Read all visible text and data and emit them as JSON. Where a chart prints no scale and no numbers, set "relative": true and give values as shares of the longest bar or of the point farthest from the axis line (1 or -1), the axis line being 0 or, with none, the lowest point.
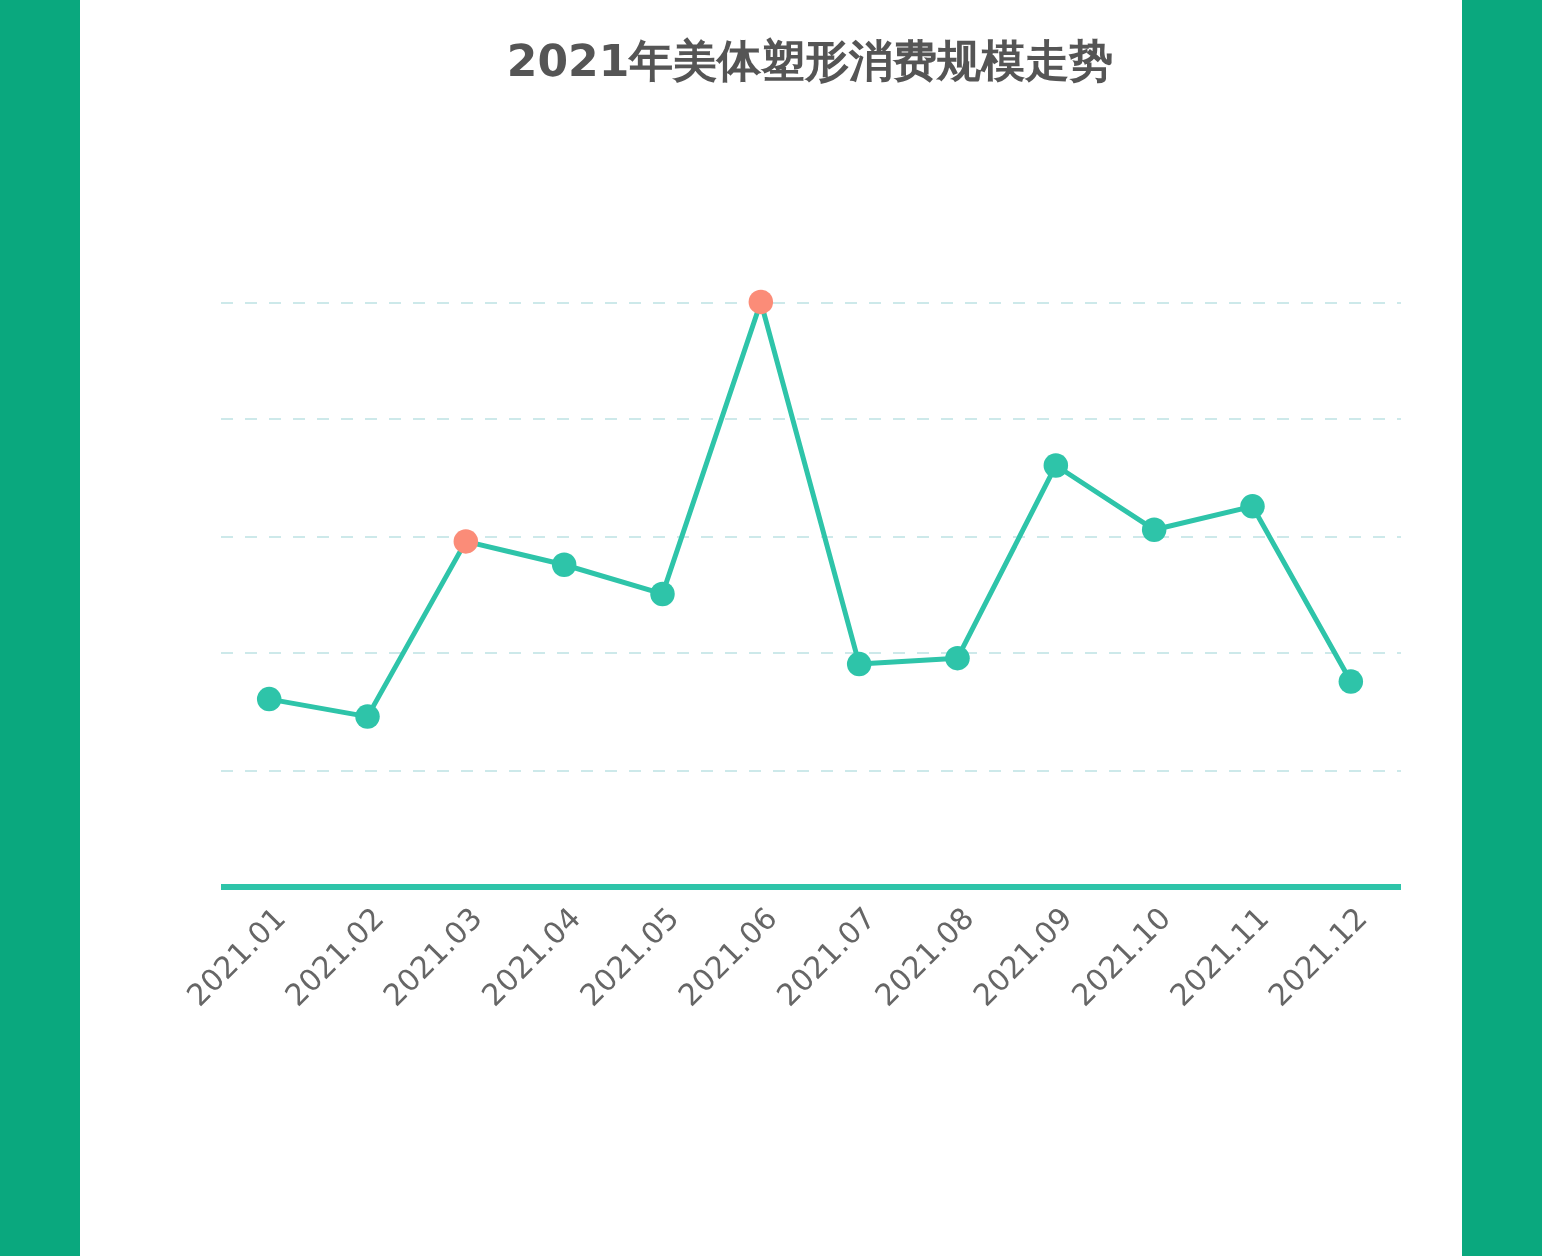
{
  "chart_data": {
    "type": "line",
    "title": "2021年美体塑形消费规模走势",
    "relative": true,
    "grid": "y",
    "marker": "circle",
    "line_style": "solid",
    "categories": [
      "2021.01",
      "2021.02",
      "2021.03",
      "2021.04",
      "2021.05",
      "2021.06",
      "2021.07",
      "2021.08",
      "2021.09",
      "2021.10",
      "2021.11",
      "2021.12"
    ],
    "series": [
      {
        "color": "#2ec4a9",
        "colors": [
          "#2ec4a9",
          "#2ec4a9",
          "#fb8c78",
          "#2ec4a9",
          "#2ec4a9",
          "#fb8c78",
          "#2ec4a9",
          "#2ec4a9",
          "#2ec4a9",
          "#2ec4a9",
          "#2ec4a9",
          "#2ec4a9"
        ],
        "values": [
          0.32,
          0.29,
          0.59,
          0.55,
          0.5,
          1,
          0.38,
          0.39,
          0.72,
          0.61,
          0.65,
          0.35
        ]
      }
    ]
  }
}
